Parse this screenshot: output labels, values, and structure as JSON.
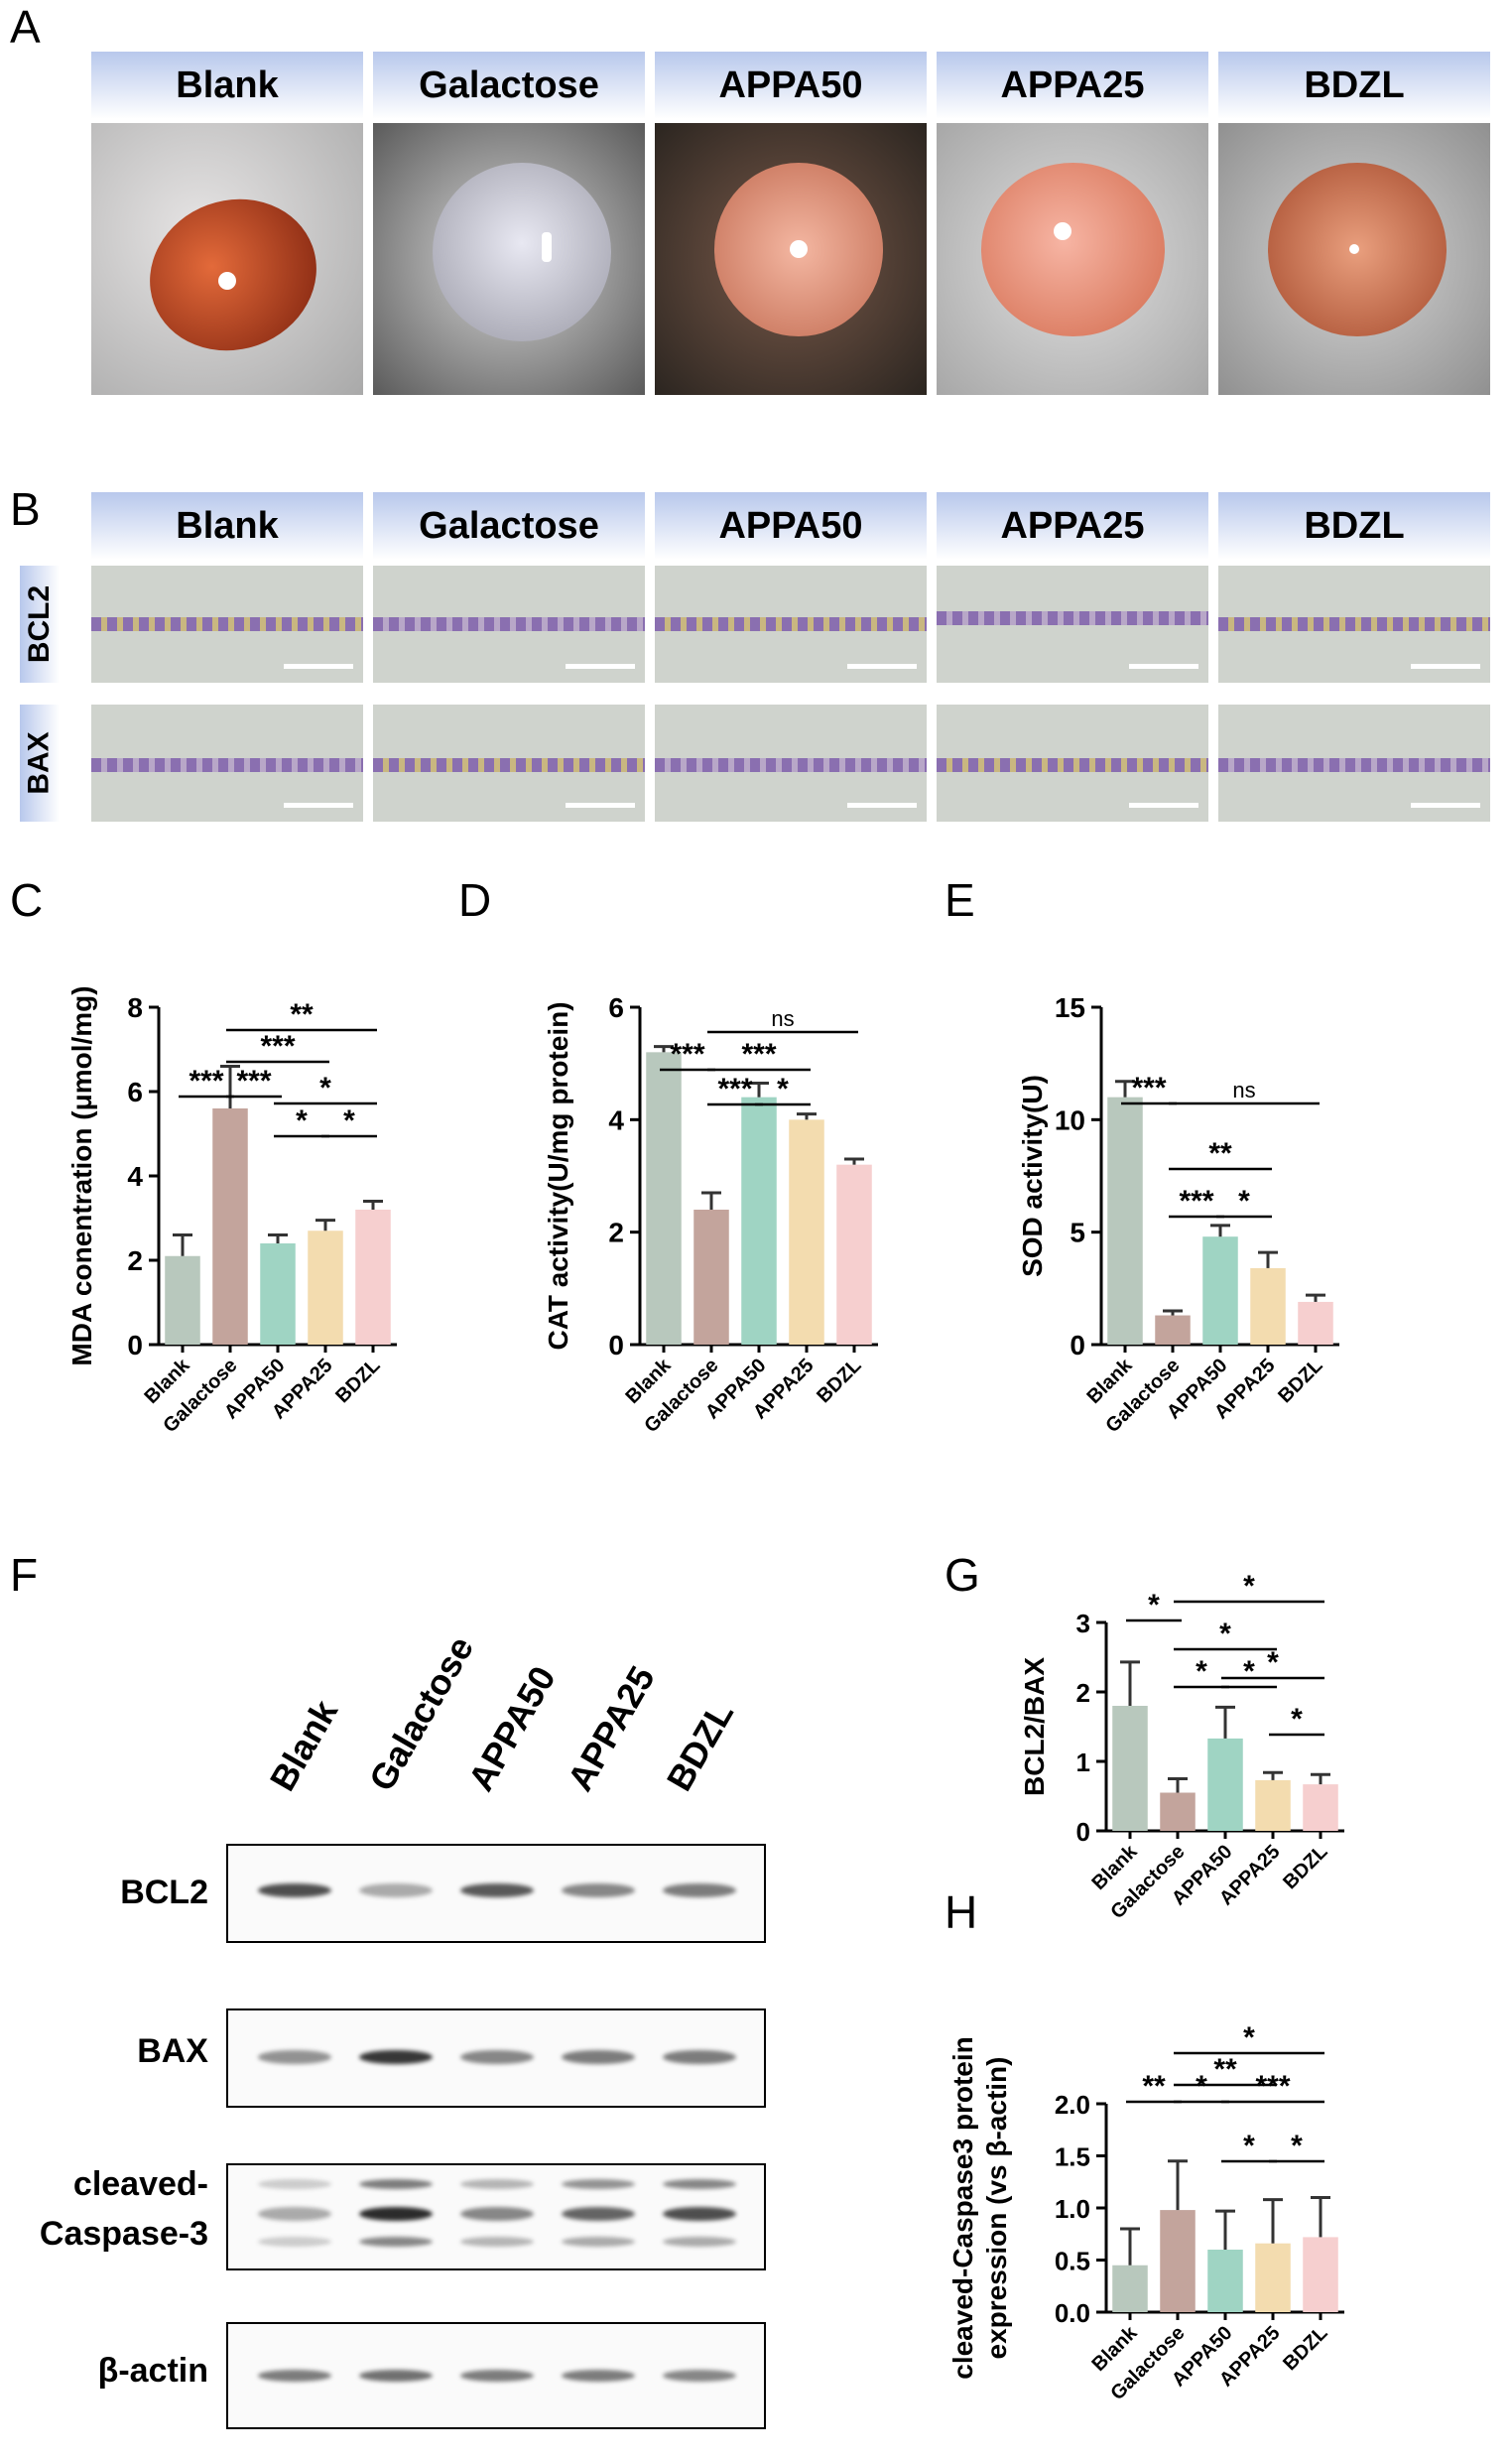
{
  "panels": {
    "A": "A",
    "B": "B",
    "C": "C",
    "D": "D",
    "E": "E",
    "F": "F",
    "G": "G",
    "H": "H"
  },
  "groups": [
    "Blank",
    "Galactose",
    "APPA50",
    "APPA25",
    "BDZL"
  ],
  "colors": {
    "Blank": "#b8c8bd",
    "Galactose": "#c3a49c",
    "APPA50": "#9fd4c3",
    "APPA25": "#f3dcaf",
    "BDZL": "#f6cfcf",
    "header": "#b8c8ec"
  },
  "panel_B_rows": [
    "BCL2",
    "BAX"
  ],
  "panel_F": {
    "lanes": [
      "Blank",
      "Galactose",
      "APPA50",
      "APPA25",
      "BDZL"
    ],
    "blots": [
      "BCL2",
      "BAX",
      "cleaved-\nCaspase-3",
      "β-actin"
    ],
    "blot_labels": {
      "bcl2": "BCL2",
      "bax": "BAX",
      "casp_1": "cleaved-",
      "casp_2": "Caspase-3",
      "actin": "β-actin"
    }
  },
  "chart_data": [
    {
      "id": "C",
      "type": "bar",
      "categories": [
        "Blank",
        "Galactose",
        "APPA50",
        "APPA25",
        "BDZL"
      ],
      "values": [
        2.1,
        5.6,
        2.4,
        2.7,
        3.2
      ],
      "errors": [
        0.5,
        1.0,
        0.2,
        0.25,
        0.2
      ],
      "ylabel": "MDA conentration (μmol/mg)",
      "ylim": [
        0,
        8
      ],
      "yticks": [
        "0",
        "2",
        "4",
        "6",
        "8"
      ],
      "sig": [
        {
          "from": 0,
          "to": 1,
          "label": "***"
        },
        {
          "from": 1,
          "to": 2,
          "label": "***"
        },
        {
          "from": 1,
          "to": 3,
          "label": "***"
        },
        {
          "from": 1,
          "to": 4,
          "label": "**"
        },
        {
          "from": 2,
          "to": 3,
          "label": "*"
        },
        {
          "from": 3,
          "to": 4,
          "label": "*"
        },
        {
          "from": 2,
          "to": 4,
          "label": "*"
        }
      ]
    },
    {
      "id": "D",
      "type": "bar",
      "categories": [
        "Blank",
        "Galactose",
        "APPA50",
        "APPA25",
        "BDZL"
      ],
      "values": [
        5.2,
        2.4,
        4.4,
        4.0,
        3.2
      ],
      "errors": [
        0.1,
        0.3,
        0.25,
        0.1,
        0.1
      ],
      "ylabel": "CAT activity(U/mg protein)",
      "ylim": [
        0,
        6
      ],
      "yticks": [
        "0",
        "2",
        "4",
        "6"
      ],
      "sig": [
        {
          "from": 0,
          "to": 1,
          "label": "***"
        },
        {
          "from": 1,
          "to": 3,
          "label": "***"
        },
        {
          "from": 1,
          "to": 4,
          "label": "ns"
        },
        {
          "from": 1,
          "to": 2,
          "label": "***"
        },
        {
          "from": 2,
          "to": 3,
          "label": "*"
        }
      ]
    },
    {
      "id": "E",
      "type": "bar",
      "categories": [
        "Blank",
        "Galactose",
        "APPA50",
        "APPA25",
        "BDZL"
      ],
      "values": [
        11.0,
        1.3,
        4.8,
        3.4,
        1.9
      ],
      "errors": [
        0.7,
        0.2,
        0.5,
        0.7,
        0.3
      ],
      "ylabel": "SOD activity(U)",
      "ylim": [
        0,
        15
      ],
      "yticks": [
        "0",
        "5",
        "10",
        "15"
      ],
      "sig": [
        {
          "from": 0,
          "to": 1,
          "label": "***"
        },
        {
          "from": 1,
          "to": 4,
          "label": "ns"
        },
        {
          "from": 1,
          "to": 3,
          "label": "**"
        },
        {
          "from": 1,
          "to": 2,
          "label": "***"
        },
        {
          "from": 2,
          "to": 3,
          "label": "*"
        }
      ]
    },
    {
      "id": "G",
      "type": "bar",
      "categories": [
        "Blank",
        "Galactose",
        "APPA50",
        "APPA25",
        "BDZL"
      ],
      "values": [
        1.8,
        0.55,
        1.33,
        0.73,
        0.67
      ],
      "errors": [
        0.63,
        0.2,
        0.45,
        0.11,
        0.14
      ],
      "ylabel": "BCL2/BAX",
      "ylim": [
        0,
        3
      ],
      "yticks": [
        "0",
        "1",
        "2",
        "3"
      ],
      "sig": [
        {
          "from": 0,
          "to": 1,
          "label": "*"
        },
        {
          "from": 1,
          "to": 4,
          "label": "*"
        },
        {
          "from": 1,
          "to": 3,
          "label": "*"
        },
        {
          "from": 2,
          "to": 4,
          "label": "*"
        },
        {
          "from": 1,
          "to": 2,
          "label": "*"
        },
        {
          "from": 2,
          "to": 3,
          "label": "*"
        },
        {
          "from": 3,
          "to": 4,
          "label": "*"
        }
      ]
    },
    {
      "id": "H",
      "type": "bar",
      "categories": [
        "Blank",
        "Galactose",
        "APPA50",
        "APPA25",
        "BDZL"
      ],
      "values": [
        0.45,
        0.98,
        0.6,
        0.66,
        0.72
      ],
      "errors": [
        0.35,
        0.47,
        0.37,
        0.42,
        0.38
      ],
      "ylabel": "cleaved-Caspase3 protein expression  (vs β-actin)",
      "ylabel_lines": [
        "cleaved-Caspase3 protein",
        "expression  (vs β-actin)"
      ],
      "ylim": [
        0,
        2.0
      ],
      "yticks": [
        "0.0",
        "0.5",
        "1.0",
        "1.5",
        "2.0"
      ],
      "sig": [
        {
          "from": 1,
          "to": 4,
          "label": "*"
        },
        {
          "from": 1,
          "to": 3,
          "label": "**"
        },
        {
          "from": 0,
          "to": 1,
          "label": "**"
        },
        {
          "from": 1,
          "to": 2,
          "label": "*"
        },
        {
          "from": 2,
          "to": 4,
          "label": "***"
        },
        {
          "from": 2,
          "to": 3,
          "label": "*"
        },
        {
          "from": 3,
          "to": 4,
          "label": "*"
        }
      ]
    }
  ]
}
